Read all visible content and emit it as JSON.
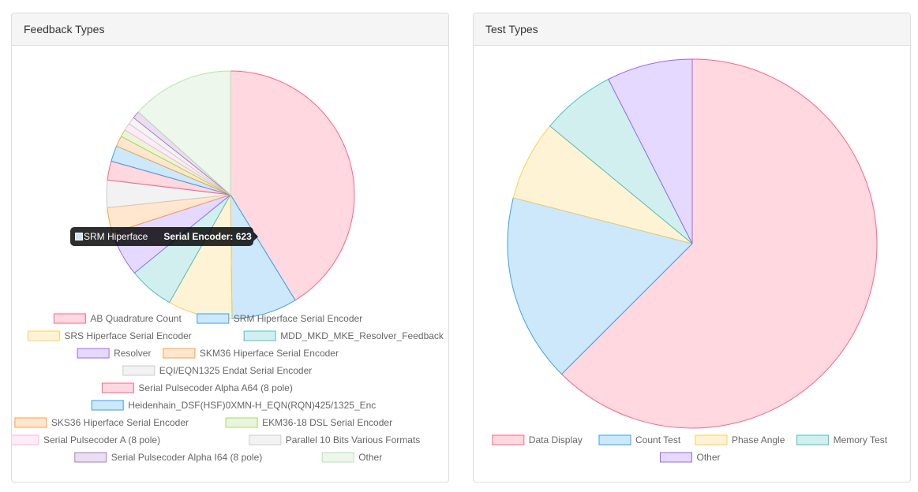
{
  "panels": {
    "feedback": {
      "title": "Feedback Types"
    },
    "test": {
      "title": "Test Types"
    }
  },
  "tooltip": {
    "series": "SRM Hiperface",
    "value_text": "Serial Encoder: 623"
  },
  "chart_data": [
    {
      "type": "pie",
      "categories": [
        "AB Quadrature Count",
        "SRM Hiperface      Serial Encoder",
        "SRS Hiperface      Serial Encoder",
        "MDD_MKD_MKE_Resolver_Feedback",
        "Resolver",
        "SKM36 Hiperface      Serial Encoder",
        "EQI/EQN1325 Endat   Serial Encoder",
        "Serial Pulsecoder Alpha A64      (8  pole)",
        "Heidenhain_DSF(HSF)0XMN-H_EQN(RQN)425/1325_Enc",
        "SKS36 Hiperface   Serial Encoder",
        "EKM36-18 DSL         Serial Encoder",
        "Serial Pulsecoder A          (8  pole)",
        "Parallel 10 Bits Various Formats",
        "Serial Pulsecoder Alpha I64   (8  pole)",
        "Other"
      ],
      "values": [
        3000,
        623,
        610,
        430,
        430,
        240,
        260,
        180,
        150,
        100,
        70,
        70,
        70,
        70,
        970
      ],
      "colors": [
        "#ff6384",
        "#36a2eb",
        "#ffcd56",
        "#4bc0c0",
        "#9966ff",
        "#ff9f40",
        "#c9cbcf",
        "#ff6384",
        "#36a2eb",
        "#ff9f40",
        "#a5d86a",
        "#ffb3d9",
        "#cfcfcf",
        "#a77dc2",
        "#b8e0b0"
      ]
    },
    {
      "type": "pie",
      "categories": [
        "Data Display",
        "Count Test",
        "Phase Angle",
        "Memory Test",
        "Other"
      ],
      "values": [
        62.5,
        16.5,
        7,
        6.5,
        7.5
      ],
      "colors": [
        "#ff6384",
        "#36a2eb",
        "#ffcd56",
        "#4bc0c0",
        "#9966ff"
      ]
    }
  ]
}
